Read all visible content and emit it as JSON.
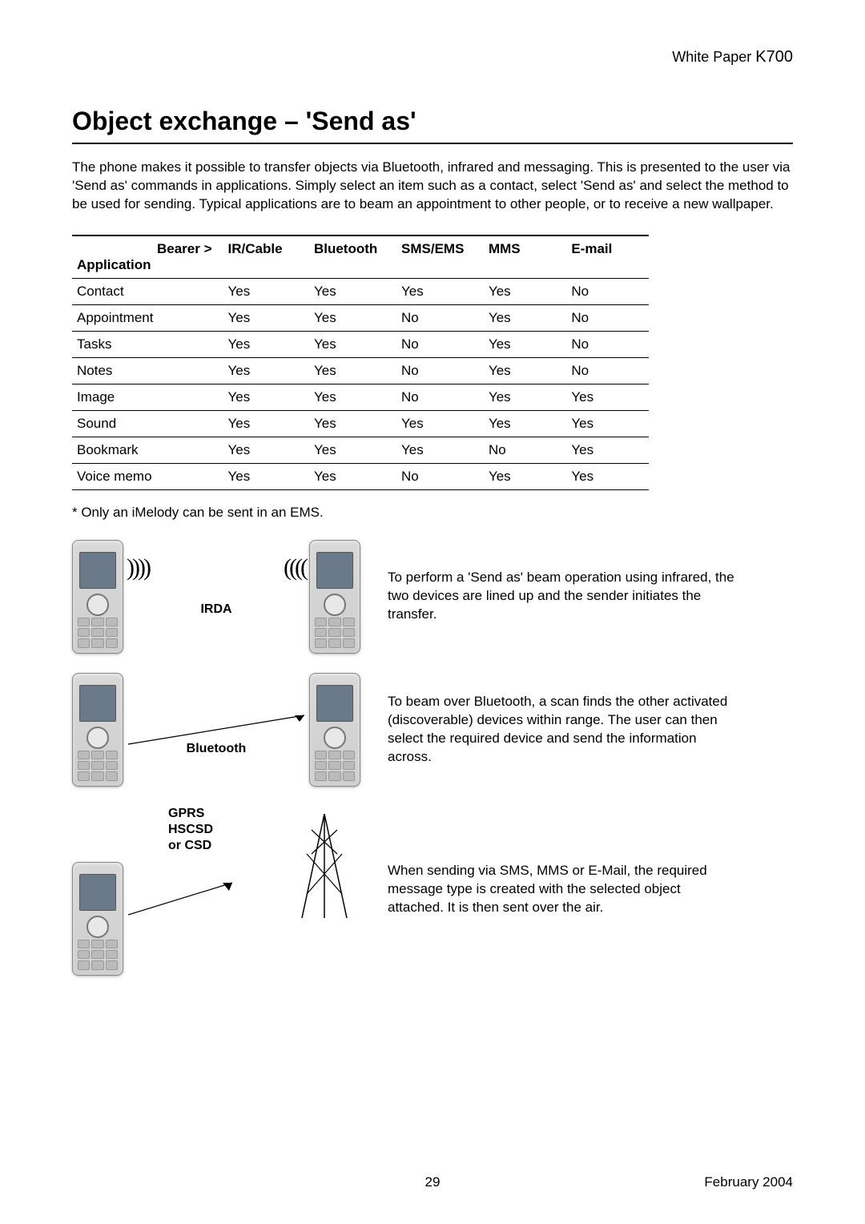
{
  "header": {
    "label": "White Paper",
    "model": "K700"
  },
  "title": "Object exchange – 'Send as'",
  "intro": "The phone makes it possible to transfer objects via Bluetooth, infrared and messaging. This is presented to the user via 'Send as' commands in applications. Simply select an item such as a contact, select 'Send as' and select the method to be used for sending. Typical applications are to beam an appointment to other people, or to receive a new wallpaper.",
  "table": {
    "header_corner_top": "Bearer >",
    "header_corner_bottom": "Application",
    "columns": [
      "IR/Cable",
      "Bluetooth",
      "SMS/EMS",
      "MMS",
      "E-mail"
    ],
    "rows": [
      {
        "app": "Contact",
        "cells": [
          "Yes",
          "Yes",
          "Yes",
          "Yes",
          "No"
        ]
      },
      {
        "app": "Appointment",
        "cells": [
          "Yes",
          "Yes",
          "No",
          "Yes",
          "No"
        ]
      },
      {
        "app": "Tasks",
        "cells": [
          "Yes",
          "Yes",
          "No",
          "Yes",
          "No"
        ]
      },
      {
        "app": "Notes",
        "cells": [
          "Yes",
          "Yes",
          "No",
          "Yes",
          "No"
        ]
      },
      {
        "app": "Image",
        "cells": [
          "Yes",
          "Yes",
          "No",
          "Yes",
          "Yes"
        ]
      },
      {
        "app": "Sound",
        "cells": [
          "Yes",
          "Yes",
          "Yes",
          "Yes",
          "Yes"
        ]
      },
      {
        "app": "Bookmark",
        "cells": [
          "Yes",
          "Yes",
          "Yes",
          "No",
          "Yes"
        ]
      },
      {
        "app": "Voice memo",
        "cells": [
          "Yes",
          "Yes",
          "No",
          "Yes",
          "Yes"
        ]
      }
    ]
  },
  "footnote": "* Only an iMelody can be sent in an EMS.",
  "diagrams": {
    "irda": {
      "label": "IRDA",
      "desc": "To perform a 'Send as' beam operation using infrared, the two devices are lined up and the sender initiates the transfer."
    },
    "bluetooth": {
      "label": "Bluetooth",
      "desc": "To beam over Bluetooth, a scan finds the other activated (discoverable) devices within range. The user can then select the required device and send the information across."
    },
    "gprs": {
      "label_line1": "GPRS",
      "label_line2": "HSCSD",
      "label_line3": "or CSD",
      "desc": "When sending via SMS, MMS or E-Mail, the required message type is created with the selected object attached. It is then sent over the air."
    }
  },
  "footer": {
    "page": "29",
    "date": "February 2004"
  },
  "colors": {
    "text": "#000000",
    "background": "#ffffff",
    "rule": "#000000",
    "phone_body": "#cfcfcf",
    "phone_screen": "#6a7a8a"
  }
}
